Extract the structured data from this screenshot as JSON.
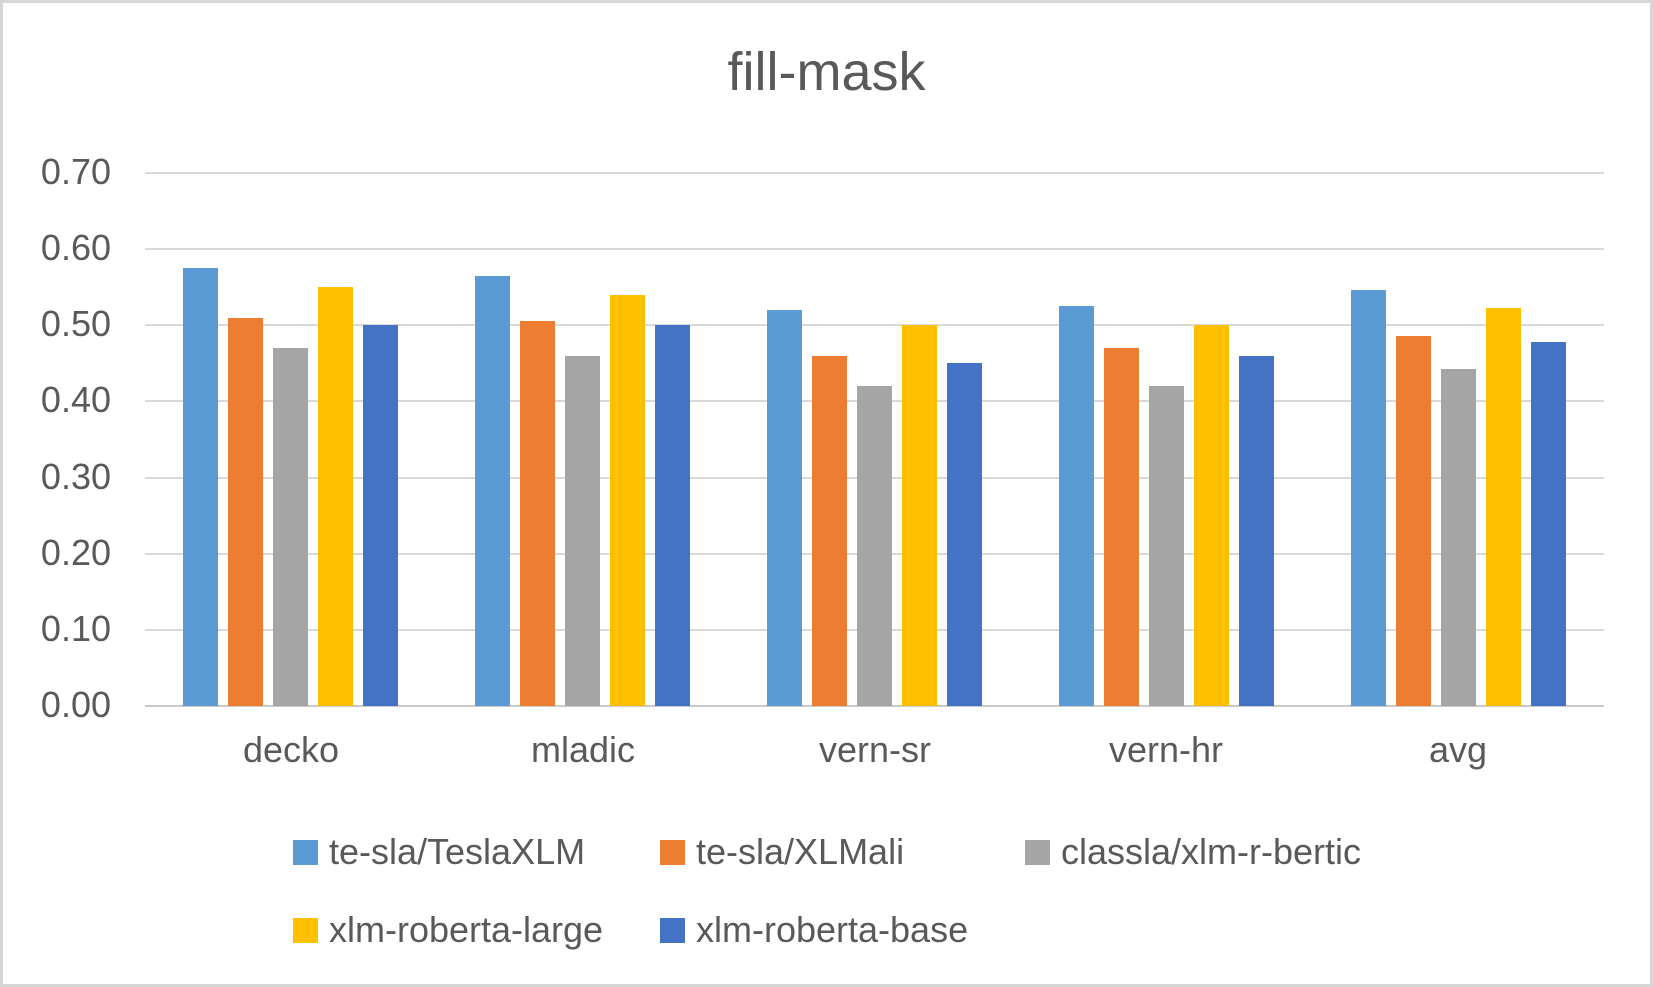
{
  "title": "fill-mask",
  "colors": {
    "text": "#595959",
    "gridline": "#d9d9d9",
    "axis_line": "#c9c9c9",
    "background": "#ffffff",
    "frame_border": "#d6d6d6"
  },
  "chart_data": {
    "type": "bar",
    "title": "fill-mask",
    "categories": [
      "decko",
      "mladic",
      "vern-sr",
      "vern-hr",
      "avg"
    ],
    "series": [
      {
        "name": "te-sla/TeslaXLM",
        "color": "#5B9BD5",
        "values": [
          0.575,
          0.565,
          0.52,
          0.525,
          0.546
        ]
      },
      {
        "name": "te-sla/XLMali",
        "color": "#ED7D31",
        "values": [
          0.51,
          0.505,
          0.46,
          0.47,
          0.486
        ]
      },
      {
        "name": "classla/xlm-r-bertic",
        "color": "#A5A5A5",
        "values": [
          0.47,
          0.46,
          0.42,
          0.42,
          0.443
        ]
      },
      {
        "name": "xlm-roberta-large",
        "color": "#FFC000",
        "values": [
          0.55,
          0.54,
          0.5,
          0.5,
          0.523
        ]
      },
      {
        "name": "xlm-roberta-base",
        "color": "#4472C4",
        "values": [
          0.5,
          0.5,
          0.45,
          0.46,
          0.478
        ]
      }
    ],
    "xlabel": "",
    "ylabel": "",
    "ylim": [
      0.0,
      0.7
    ],
    "y_ticks": [
      {
        "value": 0.0,
        "label": "0.00"
      },
      {
        "value": 0.1,
        "label": "0.10"
      },
      {
        "value": 0.2,
        "label": "0.20"
      },
      {
        "value": 0.3,
        "label": "0.30"
      },
      {
        "value": 0.4,
        "label": "0.40"
      },
      {
        "value": 0.5,
        "label": "0.50"
      },
      {
        "value": 0.6,
        "label": "0.60"
      },
      {
        "value": 0.7,
        "label": "0.70"
      }
    ],
    "grid": "horizontal",
    "legend_position": "bottom"
  }
}
